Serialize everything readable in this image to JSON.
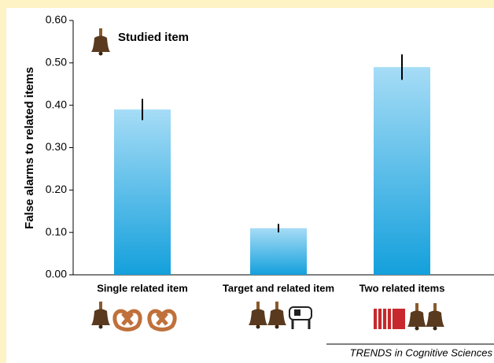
{
  "chart_data": {
    "type": "bar",
    "y_label": "False alarms to related items",
    "annotation": "Studied item",
    "source": "TRENDS in Cognitive Sciences",
    "categories": [
      "Single related item",
      "Target and related item",
      "Two related items"
    ],
    "values": [
      0.39,
      0.11,
      0.49
    ],
    "errors": [
      0.025,
      0.01,
      0.03
    ],
    "color": "#14a0dc",
    "ylim": [
      0,
      0.6
    ],
    "yticks": [
      {
        "value": 0,
        "label": "0.00"
      },
      {
        "value": 0.1,
        "label": "0.10"
      },
      {
        "value": 0.2,
        "label": "0.20"
      },
      {
        "value": 0.3,
        "label": "0.30"
      },
      {
        "value": 0.4,
        "label": "0.40"
      },
      {
        "value": 0.5,
        "label": "0.50"
      },
      {
        "value": 0.6,
        "label": "0.60"
      }
    ]
  }
}
